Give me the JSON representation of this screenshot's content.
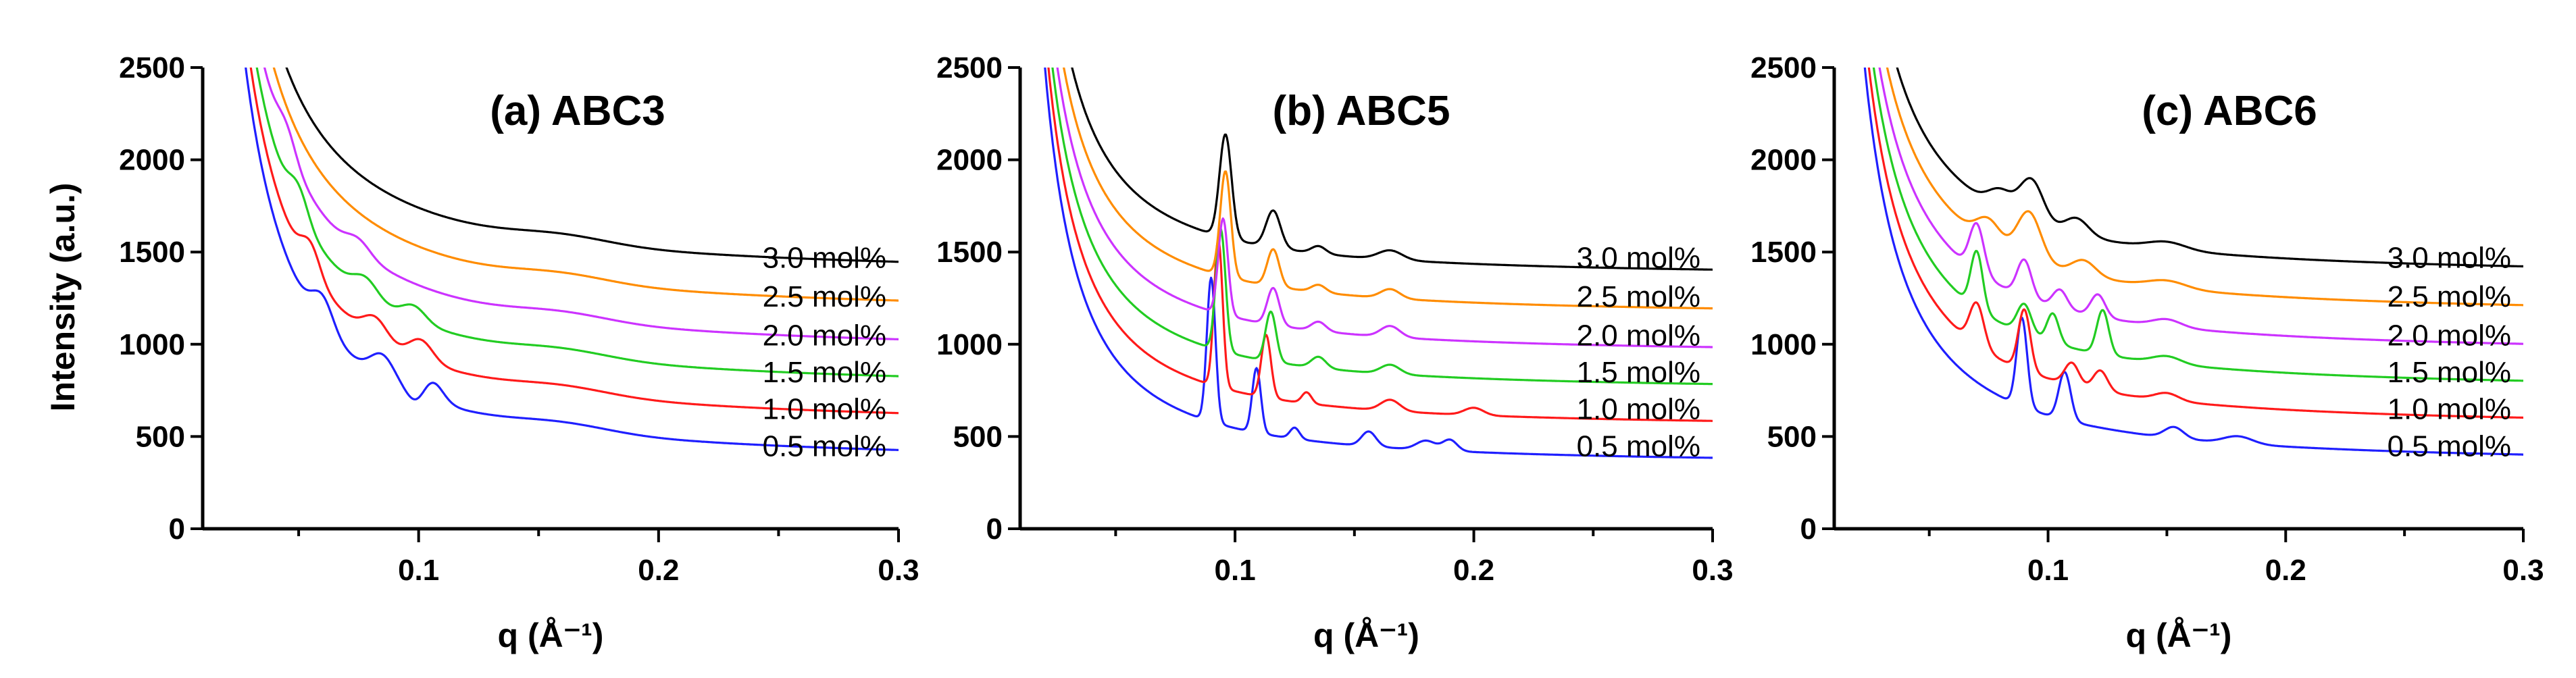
{
  "chart_data": [
    {
      "type": "line",
      "title": "(a) ABC3",
      "xlabel": "q (Å⁻¹)",
      "ylabel": "Intensity (a.u.)",
      "xlim": [
        0.01,
        0.3
      ],
      "ylim": [
        0,
        2500
      ],
      "xticks": [
        0.1,
        0.2,
        0.3
      ],
      "xtick_labels": [
        "0.1",
        "0.2",
        "0.3"
      ],
      "yticks": [
        0,
        500,
        1000,
        1500,
        2000,
        2500
      ],
      "ytick_labels": [
        "0",
        "500",
        "1000",
        "1500",
        "2000",
        "2500"
      ],
      "series": [
        {
          "name": "0.5 mol%",
          "color": "#1f1fff",
          "baseline": 350,
          "A": 130,
          "p": 1.45,
          "features": [
            [
              0.06,
              160,
              0.0045
            ],
            [
              0.085,
              130,
              0.005
            ],
            [
              0.104,
              150,
              0.005
            ],
            [
              0.1,
              -120,
              0.004
            ],
            [
              0.16,
              40,
              0.02
            ]
          ]
        },
        {
          "name": "1.0 mol%",
          "color": "#ff1a1a",
          "baseline": 550,
          "A": 130,
          "p": 1.45,
          "features": [
            [
              0.055,
              150,
              0.004
            ],
            [
              0.082,
              110,
              0.005
            ],
            [
              0.101,
              110,
              0.005
            ],
            [
              0.16,
              40,
              0.02
            ]
          ]
        },
        {
          "name": "1.5 mol%",
          "color": "#22cc22",
          "baseline": 750,
          "A": 130,
          "p": 1.45,
          "features": [
            [
              0.05,
              140,
              0.004
            ],
            [
              0.078,
              90,
              0.005
            ],
            [
              0.098,
              80,
              0.005
            ],
            [
              0.16,
              40,
              0.02
            ]
          ]
        },
        {
          "name": "2.0 mol%",
          "color": "#cc33ff",
          "baseline": 950,
          "A": 130,
          "p": 1.45,
          "features": [
            [
              0.045,
              120,
              0.004
            ],
            [
              0.075,
              70,
              0.005
            ],
            [
              0.16,
              40,
              0.02
            ]
          ]
        },
        {
          "name": "2.5 mol%",
          "color": "#ff8c00",
          "baseline": 1160,
          "A": 130,
          "p": 1.45,
          "features": [
            [
              0.16,
              40,
              0.02
            ]
          ]
        },
        {
          "name": "3.0 mol%",
          "color": "#000000",
          "baseline": 1370,
          "A": 130,
          "p": 1.45,
          "features": [
            [
              0.16,
              40,
              0.02
            ]
          ]
        }
      ]
    },
    {
      "type": "line",
      "title": "(b) ABC5",
      "xlabel": "q (Å⁻¹)",
      "ylabel": "",
      "xlim": [
        0.01,
        0.3
      ],
      "ylim": [
        0,
        2500
      ],
      "xticks": [
        0.1,
        0.2,
        0.3
      ],
      "xtick_labels": [
        "0.1",
        "0.2",
        "0.3"
      ],
      "yticks": [
        0,
        500,
        1000,
        1500,
        2000,
        2500
      ],
      "ytick_labels": [
        "0",
        "500",
        "1000",
        "1500",
        "2000",
        "2500"
      ],
      "series": [
        {
          "name": "0.5 mol%",
          "color": "#1f1fff",
          "baseline": 350,
          "A": 85,
          "p": 1.6,
          "features": [
            [
              0.09,
              780,
              0.0018
            ],
            [
              0.109,
              350,
              0.0018
            ],
            [
              0.125,
              60,
              0.002
            ],
            [
              0.156,
              80,
              0.003
            ],
            [
              0.18,
              50,
              0.004
            ],
            [
              0.19,
              60,
              0.003
            ]
          ]
        },
        {
          "name": "1.0 mol%",
          "color": "#ff1a1a",
          "baseline": 550,
          "A": 85,
          "p": 1.6,
          "features": [
            [
              0.093,
              800,
              0.0018
            ],
            [
              0.113,
              340,
              0.002
            ],
            [
              0.13,
              60,
              0.002
            ],
            [
              0.165,
              60,
              0.004
            ],
            [
              0.2,
              40,
              0.004
            ]
          ]
        },
        {
          "name": "1.5 mol%",
          "color": "#22cc22",
          "baseline": 750,
          "A": 85,
          "p": 1.6,
          "features": [
            [
              0.094,
              660,
              0.002
            ],
            [
              0.115,
              270,
              0.0022
            ],
            [
              0.135,
              60,
              0.003
            ],
            [
              0.165,
              50,
              0.004
            ]
          ]
        },
        {
          "name": "2.0 mol%",
          "color": "#cc33ff",
          "baseline": 950,
          "A": 85,
          "p": 1.6,
          "features": [
            [
              0.095,
              520,
              0.002
            ],
            [
              0.116,
              200,
              0.0025
            ],
            [
              0.135,
              50,
              0.003
            ],
            [
              0.165,
              60,
              0.004
            ]
          ]
        },
        {
          "name": "2.5 mol%",
          "color": "#ff8c00",
          "baseline": 1160,
          "A": 85,
          "p": 1.6,
          "features": [
            [
              0.096,
              570,
              0.0022
            ],
            [
              0.116,
              200,
              0.0025
            ],
            [
              0.135,
              40,
              0.003
            ],
            [
              0.165,
              50,
              0.004
            ]
          ]
        },
        {
          "name": "3.0 mol%",
          "color": "#000000",
          "baseline": 1370,
          "A": 85,
          "p": 1.6,
          "features": [
            [
              0.096,
              560,
              0.0025
            ],
            [
              0.116,
              200,
              0.003
            ],
            [
              0.135,
              40,
              0.003
            ],
            [
              0.165,
              50,
              0.005
            ]
          ]
        }
      ]
    },
    {
      "type": "line",
      "title": "(c) ABC6",
      "xlabel": "q (Å⁻¹)",
      "ylabel": "",
      "xlim": [
        0.01,
        0.3
      ],
      "ylim": [
        0,
        2500
      ],
      "xticks": [
        0.1,
        0.2,
        0.3
      ],
      "xtick_labels": [
        "0.1",
        "0.2",
        "0.3"
      ],
      "yticks": [
        0,
        500,
        1000,
        1500,
        2000,
        2500
      ],
      "ytick_labels": [
        "0",
        "500",
        "1000",
        "1500",
        "2000",
        "2500"
      ],
      "series": [
        {
          "name": "0.5 mol%",
          "color": "#1f1fff",
          "baseline": 350,
          "A": 100,
          "p": 1.5,
          "features": [
            [
              0.089,
              480,
              0.0022
            ],
            [
              0.107,
              260,
              0.0025
            ],
            [
              0.153,
              60,
              0.004
            ],
            [
              0.18,
              40,
              0.006
            ]
          ]
        },
        {
          "name": "1.0 mol%",
          "color": "#ff1a1a",
          "baseline": 550,
          "A": 100,
          "p": 1.5,
          "features": [
            [
              0.07,
              230,
              0.003
            ],
            [
              0.09,
              330,
              0.0025
            ],
            [
              0.11,
              120,
              0.003
            ],
            [
              0.122,
              110,
              0.003
            ],
            [
              0.15,
              40,
              0.005
            ]
          ]
        },
        {
          "name": "1.5 mol%",
          "color": "#22cc22",
          "baseline": 750,
          "A": 100,
          "p": 1.5,
          "features": [
            [
              0.07,
              310,
              0.0025
            ],
            [
              0.09,
              160,
              0.003
            ],
            [
              0.102,
              160,
              0.0025
            ],
            [
              0.123,
              240,
              0.0025
            ],
            [
              0.15,
              40,
              0.006
            ]
          ]
        },
        {
          "name": "2.0 mol%",
          "color": "#cc33ff",
          "baseline": 950,
          "A": 100,
          "p": 1.5,
          "features": [
            [
              0.07,
              260,
              0.003
            ],
            [
              0.09,
              200,
              0.003
            ],
            [
              0.105,
              100,
              0.003
            ],
            [
              0.121,
              120,
              0.003
            ],
            [
              0.15,
              40,
              0.006
            ]
          ]
        },
        {
          "name": "2.5 mol%",
          "color": "#ff8c00",
          "baseline": 1160,
          "A": 100,
          "p": 1.5,
          "features": [
            [
              0.075,
              120,
              0.005
            ],
            [
              0.092,
              260,
              0.005
            ],
            [
              0.115,
              80,
              0.005
            ],
            [
              0.15,
              40,
              0.008
            ]
          ]
        },
        {
          "name": "3.0 mol%",
          "color": "#000000",
          "baseline": 1370,
          "A": 100,
          "p": 1.5,
          "features": [
            [
              0.08,
              100,
              0.005
            ],
            [
              0.093,
              230,
              0.005
            ],
            [
              0.112,
              90,
              0.005
            ],
            [
              0.15,
              40,
              0.008
            ]
          ]
        }
      ]
    }
  ]
}
